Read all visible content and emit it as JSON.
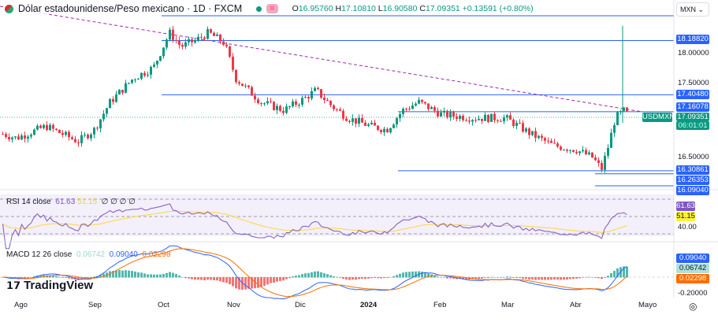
{
  "header": {
    "title": "Dólar estadounidense/Peso mexicano · 1D · FXCM",
    "open_label": "O",
    "open": "16.95760",
    "high_label": "H",
    "high": "17.10810",
    "low_label": "L",
    "low": "16.90580",
    "close_label": "C",
    "close": "17.09351",
    "change": "+0.13591 (+0.80%)",
    "status_dot": "#089981",
    "eq_badge": "="
  },
  "currency_select": "MXN ⌄",
  "price_axis": {
    "ticks": [
      "18.00000",
      "17.50000",
      "16.50000"
    ],
    "tick_values": [
      18,
      17.5,
      16.5
    ]
  },
  "levels": [
    {
      "label": "18.18820",
      "value": 18.1882
    },
    {
      "label": "17.40480",
      "value": 17.4048
    },
    {
      "label": "17.16078",
      "value": 17.16078
    },
    {
      "label": "16.30861",
      "value": 16.30861
    },
    {
      "label": "16.26353",
      "value": 16.26353
    },
    {
      "label": "16.09040",
      "value": 16.0904
    }
  ],
  "symbol_tag": "USDMXN",
  "last_price": "17.09351",
  "countdown": "06:01:01",
  "colors": {
    "up": "#089981",
    "down": "#f23645",
    "level": "#2962ff",
    "trend": "#9c27b0",
    "rsi": "#7e57c2",
    "rsi_ma": "#fdd835",
    "macd": "#2962ff",
    "signal": "#ff6d00"
  },
  "rsi": {
    "label": "RSI 14 close",
    "value": "61.63",
    "ma": "51.15",
    "icons": "∅ ∅ ∅ ∅",
    "axis": "40.00",
    "value_color": "#7e57c2",
    "ma_color": "#fdd835"
  },
  "macd": {
    "label": "MACD 12 26 close",
    "hist": "0.06742",
    "macd": "0.09040",
    "signal": "0.02298",
    "axis": "-0.20000"
  },
  "x_axis": [
    "Ago",
    "Sep",
    "Oct",
    "Nov",
    "Dic",
    "2024",
    "Feb",
    "Mar",
    "Abr",
    "Mayo"
  ],
  "logo": "TradingView",
  "chart_data": {
    "type": "candlestick",
    "symbol": "USDMXN",
    "ylim": [
      16.0,
      18.8
    ],
    "dates": [
      "2023-07-27",
      "2023-08-02",
      "2023-08-15",
      "2023-08-29",
      "2023-09-05",
      "2023-09-12",
      "2023-09-22",
      "2023-10-01",
      "2023-10-08",
      "2023-10-13",
      "2023-10-20",
      "2023-10-25",
      "2023-11-01",
      "2023-11-06",
      "2023-11-17",
      "2023-11-27",
      "2023-12-06",
      "2023-12-11",
      "2023-12-18",
      "2023-12-25",
      "2024-01-04",
      "2024-01-11",
      "2024-01-18",
      "2024-01-25",
      "2024-02-04",
      "2024-02-18",
      "2024-03-03",
      "2024-03-14",
      "2024-03-24",
      "2024-04-03",
      "2024-04-10",
      "2024-04-14",
      "2024-04-17",
      "2024-04-20",
      "2024-04-24",
      "2024-04-26"
    ],
    "closes": [
      16.84,
      16.78,
      16.95,
      16.73,
      16.9,
      17.3,
      17.64,
      17.8,
      18.3,
      18.1,
      18.2,
      18.3,
      18.15,
      17.64,
      17.3,
      17.18,
      17.35,
      17.47,
      17.24,
      17.07,
      16.95,
      16.9,
      17.18,
      17.3,
      17.12,
      17.07,
      17.07,
      16.84,
      16.67,
      16.61,
      16.5,
      16.33,
      16.67,
      17.07,
      17.18,
      17.09
    ]
  }
}
